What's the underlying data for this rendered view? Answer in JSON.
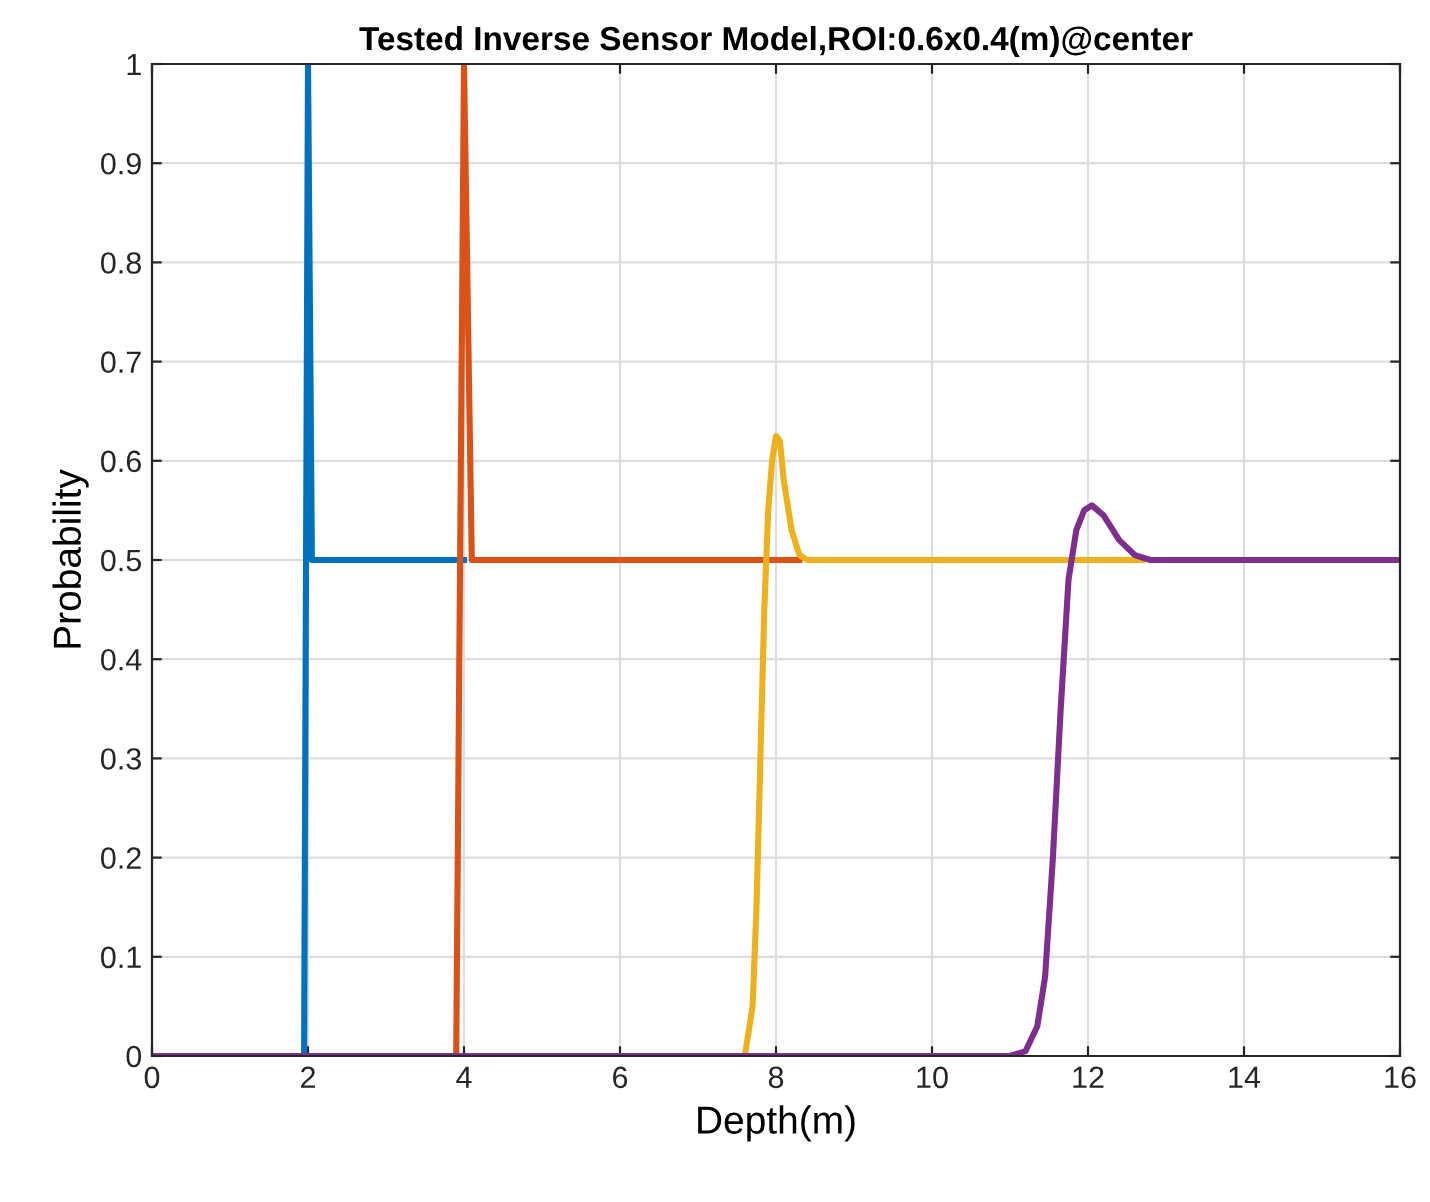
{
  "chart_data": {
    "type": "line",
    "title": "Tested Inverse Sensor Model,ROI:0.6x0.4(m)@center",
    "xlabel": "Depth(m)",
    "ylabel": "Probability",
    "series": [
      {
        "color": "#0072bd",
        "x": [
          0,
          1.95,
          2.0,
          2.05,
          4.0
        ],
        "values": [
          0,
          0,
          1.0,
          0.5,
          0.5
        ]
      },
      {
        "color": "#d95319",
        "x": [
          0,
          3.9,
          4.0,
          4.1,
          8.3
        ],
        "values": [
          0,
          0,
          1.0,
          0.5,
          0.5
        ]
      },
      {
        "color": "#edb120",
        "x": [
          0,
          7.6,
          7.7,
          7.75,
          7.8,
          7.85,
          7.9,
          7.95,
          8.0,
          8.05,
          8.1,
          8.2,
          8.3,
          8.4,
          12.7
        ],
        "values": [
          0,
          0,
          0.05,
          0.15,
          0.3,
          0.45,
          0.55,
          0.6,
          0.625,
          0.62,
          0.58,
          0.53,
          0.505,
          0.5,
          0.5
        ]
      },
      {
        "color": "#7e2f8e",
        "x": [
          0,
          11.0,
          11.2,
          11.35,
          11.45,
          11.55,
          11.65,
          11.75,
          11.85,
          11.95,
          12.05,
          12.2,
          12.4,
          12.6,
          12.8,
          16
        ],
        "values": [
          0,
          0,
          0.005,
          0.03,
          0.08,
          0.2,
          0.35,
          0.48,
          0.53,
          0.55,
          0.555,
          0.545,
          0.52,
          0.505,
          0.5,
          0.5
        ]
      }
    ],
    "xlim": [
      0,
      16
    ],
    "xticks": [
      0,
      2,
      4,
      6,
      8,
      10,
      12,
      14,
      16
    ],
    "ylim": [
      0,
      1
    ],
    "yticks": [
      0,
      0.1,
      0.2,
      0.3,
      0.4,
      0.5,
      0.6,
      0.7,
      0.8,
      0.9,
      1
    ],
    "grid": true,
    "marker": "none",
    "line_style": "solid"
  }
}
